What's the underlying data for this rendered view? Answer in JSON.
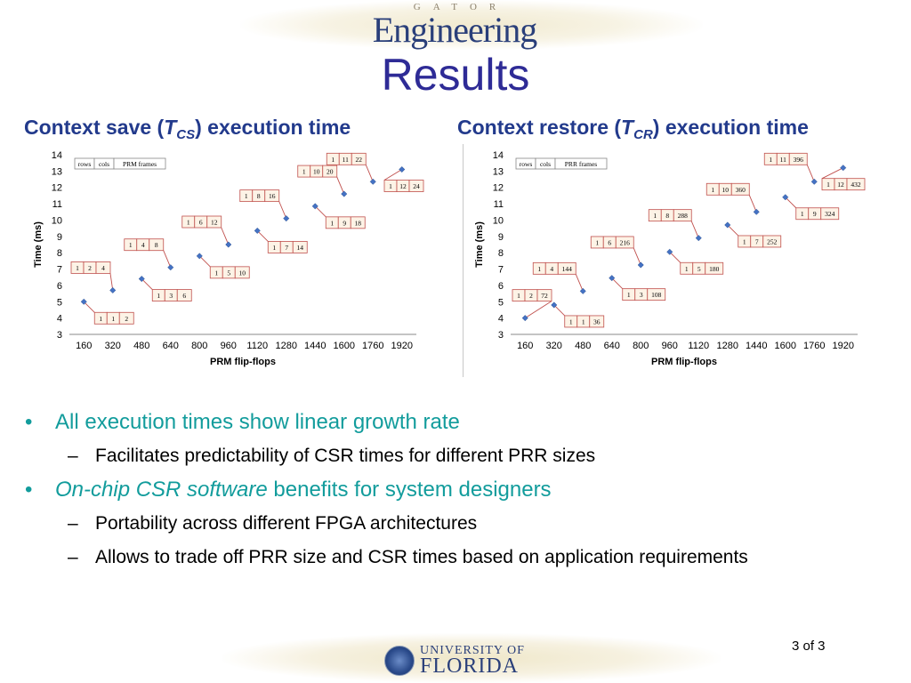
{
  "header": {
    "logo_small": "GATOR",
    "logo_big": "Engineering",
    "title": "Results"
  },
  "charts": {
    "left_heading": {
      "pre": "Context save (",
      "t": "T",
      "sub": "CS",
      "post": ") execution time"
    },
    "right_heading": {
      "pre": "Context restore (",
      "t": "T",
      "sub": "CR",
      "post": ") execution time"
    }
  },
  "chart_data": [
    {
      "type": "scatter",
      "title": "Context save (TCS) execution time",
      "xlabel": "PRM flip-flops",
      "ylabel": "Time (ms)",
      "ylim": [
        3,
        14
      ],
      "yticks": [
        3,
        4,
        5,
        6,
        7,
        8,
        9,
        10,
        11,
        12,
        13,
        14
      ],
      "categories": [
        "160",
        "320",
        "480",
        "640",
        "800",
        "960",
        "1120",
        "1280",
        "1440",
        "1600",
        "1760",
        "1920"
      ],
      "values": [
        5.0,
        5.7,
        6.4,
        7.1,
        7.8,
        8.5,
        9.35,
        10.1,
        10.85,
        11.6,
        12.35,
        13.1
      ],
      "grid": false,
      "color": "#4472c4",
      "legend": {
        "headers": [
          "rows",
          "cols",
          "PRM frames"
        ],
        "position": "top-left"
      },
      "annotations": [
        {
          "x": "160",
          "labels": [
            "1",
            "1",
            "2"
          ],
          "side": "below"
        },
        {
          "x": "320",
          "labels": [
            "1",
            "2",
            "4"
          ],
          "side": "above"
        },
        {
          "x": "480",
          "labels": [
            "1",
            "3",
            "6"
          ],
          "side": "below"
        },
        {
          "x": "640",
          "labels": [
            "1",
            "4",
            "8"
          ],
          "side": "above"
        },
        {
          "x": "800",
          "labels": [
            "1",
            "5",
            "10"
          ],
          "side": "below"
        },
        {
          "x": "960",
          "labels": [
            "1",
            "6",
            "12"
          ],
          "side": "above"
        },
        {
          "x": "1120",
          "labels": [
            "1",
            "7",
            "14"
          ],
          "side": "below"
        },
        {
          "x": "1280",
          "labels": [
            "1",
            "8",
            "16"
          ],
          "side": "above"
        },
        {
          "x": "1440",
          "labels": [
            "1",
            "9",
            "18"
          ],
          "side": "below"
        },
        {
          "x": "1600",
          "labels": [
            "1",
            "10",
            "20"
          ],
          "side": "above"
        },
        {
          "x": "1760",
          "labels": [
            "1",
            "11",
            "22"
          ],
          "side": "above"
        },
        {
          "x": "1920",
          "labels": [
            "1",
            "12",
            "24"
          ],
          "side": "below"
        }
      ]
    },
    {
      "type": "scatter",
      "title": "Context restore (TCR) execution time",
      "xlabel": "PRM flip-flops",
      "ylabel": "Time (ms)",
      "ylim": [
        3,
        14
      ],
      "yticks": [
        3,
        4,
        5,
        6,
        7,
        8,
        9,
        10,
        11,
        12,
        13,
        14
      ],
      "categories": [
        "160",
        "320",
        "480",
        "640",
        "800",
        "960",
        "1120",
        "1280",
        "1440",
        "1600",
        "1760",
        "1920"
      ],
      "values": [
        4.0,
        4.8,
        5.65,
        6.45,
        7.25,
        8.05,
        8.9,
        9.7,
        10.5,
        11.4,
        12.35,
        13.2
      ],
      "grid": false,
      "color": "#4472c4",
      "legend": {
        "headers": [
          "rows",
          "cols",
          "PRR frames"
        ],
        "position": "top-left"
      },
      "annotations": [
        {
          "x": "160",
          "labels": [
            "1",
            "2",
            "72"
          ],
          "side": "above"
        },
        {
          "x": "320",
          "labels": [
            "1",
            "1",
            "36"
          ],
          "side": "below"
        },
        {
          "x": "480",
          "labels": [
            "1",
            "4",
            "144"
          ],
          "side": "above"
        },
        {
          "x": "640",
          "labels": [
            "1",
            "3",
            "108"
          ],
          "side": "below"
        },
        {
          "x": "800",
          "labels": [
            "1",
            "6",
            "216"
          ],
          "side": "above"
        },
        {
          "x": "960",
          "labels": [
            "1",
            "5",
            "180"
          ],
          "side": "below"
        },
        {
          "x": "1120",
          "labels": [
            "1",
            "8",
            "288"
          ],
          "side": "above"
        },
        {
          "x": "1280",
          "labels": [
            "1",
            "7",
            "252"
          ],
          "side": "below"
        },
        {
          "x": "1440",
          "labels": [
            "1",
            "10",
            "360"
          ],
          "side": "above"
        },
        {
          "x": "1600",
          "labels": [
            "1",
            "9",
            "324"
          ],
          "side": "below"
        },
        {
          "x": "1760",
          "labels": [
            "1",
            "11",
            "396"
          ],
          "side": "above"
        },
        {
          "x": "1920",
          "labels": [
            "1",
            "12",
            "432"
          ],
          "side": "below"
        }
      ]
    }
  ],
  "bullets": {
    "b1": "All execution times show linear growth rate",
    "b1_sub1": "Facilitates predictability of CSR times for different PRR sizes",
    "b2_italic": "On-chip CSR software",
    "b2_rest": " benefits for system designers",
    "b2_sub1": "Portability across different FPGA architectures",
    "b2_sub2": "Allows to trade off PRR size and CSR times based on application requirements"
  },
  "footer": {
    "uf_small": "UNIVERSITY OF",
    "uf_big": "FLORIDA",
    "page": "3 of 3"
  }
}
